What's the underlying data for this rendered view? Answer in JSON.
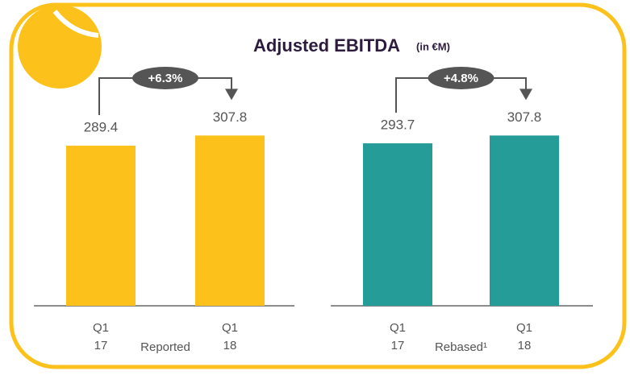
{
  "chart_data": [
    {
      "type": "bar",
      "title": "Adjusted EBITDA",
      "subtitle": "(in €M)",
      "xlabel": "Reported",
      "categories": [
        [
          "Q1",
          "17"
        ],
        [
          "Q1",
          "18"
        ]
      ],
      "values": [
        289.4,
        307.8
      ],
      "color": "#fcc21b",
      "ylim": [
        0,
        400
      ],
      "annotation": "+6.3%"
    },
    {
      "type": "bar",
      "xlabel": "Rebased¹",
      "categories": [
        [
          "Q1",
          "17"
        ],
        [
          "Q1",
          "18"
        ]
      ],
      "values": [
        293.7,
        307.8
      ],
      "color": "#259c98",
      "ylim": [
        0,
        400
      ],
      "annotation": "+4.8%"
    }
  ]
}
